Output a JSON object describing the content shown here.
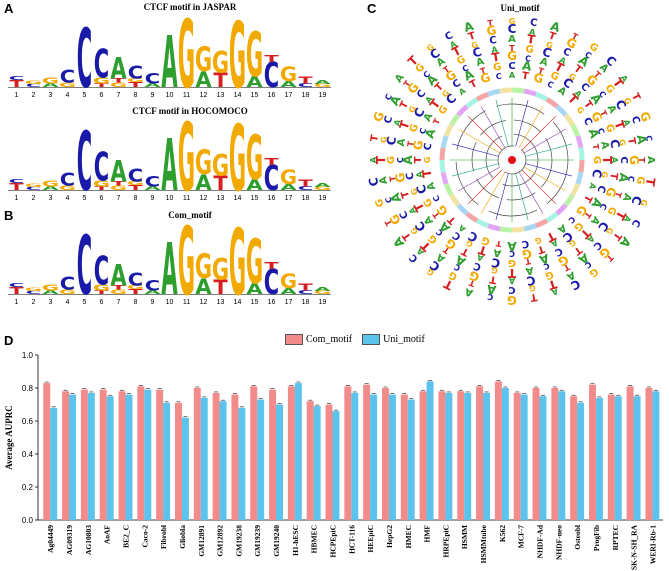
{
  "panels": {
    "a": {
      "letter": "A",
      "title": "CTCF motif in JASPAR"
    },
    "a2": {
      "title": "CTCF motif in HOCOMOCO"
    },
    "b": {
      "letter": "B",
      "title": "Com_motif"
    },
    "c": {
      "letter": "C",
      "title": "Uni_motif"
    },
    "d": {
      "letter": "D"
    }
  },
  "logo": {
    "positions": [
      "1",
      "2",
      "3",
      "4",
      "5",
      "6",
      "7",
      "8",
      "9",
      "10",
      "11",
      "12",
      "13",
      "14",
      "15",
      "16",
      "17",
      "18",
      "19"
    ],
    "colors": {
      "A": "#2e9e2e",
      "C": "#1a1aa8",
      "G": "#f2a900",
      "T": "#d42020"
    },
    "columns": [
      [
        {
          "b": "T",
          "h": 0.1
        },
        {
          "b": "C",
          "h": 0.05
        }
      ],
      [
        {
          "b": "C",
          "h": 0.04
        },
        {
          "b": "G",
          "h": 0.04
        }
      ],
      [
        {
          "b": "A",
          "h": 0.05
        },
        {
          "b": "G",
          "h": 0.08
        }
      ],
      [
        {
          "b": "G",
          "h": 0.06
        },
        {
          "b": "C",
          "h": 0.18
        }
      ],
      [
        {
          "b": "C",
          "h": 0.82
        }
      ],
      [
        {
          "b": "T",
          "h": 0.05
        },
        {
          "b": "G",
          "h": 0.08
        },
        {
          "b": "C",
          "h": 0.4
        }
      ],
      [
        {
          "b": "G",
          "h": 0.06
        },
        {
          "b": "T",
          "h": 0.06
        },
        {
          "b": "A",
          "h": 0.3
        }
      ],
      [
        {
          "b": "T",
          "h": 0.07
        },
        {
          "b": "G",
          "h": 0.05
        },
        {
          "b": "C",
          "h": 0.18
        }
      ],
      [
        {
          "b": "A",
          "h": 0.05
        },
        {
          "b": "C",
          "h": 0.14
        }
      ],
      [
        {
          "b": "A",
          "h": 0.72
        }
      ],
      [
        {
          "b": "G",
          "h": 0.95
        }
      ],
      [
        {
          "b": "A",
          "h": 0.22
        },
        {
          "b": "G",
          "h": 0.34
        }
      ],
      [
        {
          "b": "T",
          "h": 0.2
        },
        {
          "b": "G",
          "h": 0.3
        }
      ],
      [
        {
          "b": "G",
          "h": 0.92
        }
      ],
      [
        {
          "b": "A",
          "h": 0.15
        },
        {
          "b": "G",
          "h": 0.62
        }
      ],
      [
        {
          "b": "C",
          "h": 0.35
        },
        {
          "b": "T",
          "h": 0.1
        }
      ],
      [
        {
          "b": "A",
          "h": 0.08
        },
        {
          "b": "G",
          "h": 0.2
        }
      ],
      [
        {
          "b": "C",
          "h": 0.05
        },
        {
          "b": "T",
          "h": 0.1
        }
      ],
      [
        {
          "b": "G",
          "h": 0.04
        },
        {
          "b": "A",
          "h": 0.05
        }
      ]
    ]
  },
  "circle": {
    "label_colors": [
      "#2e9e2e",
      "#1a1aa8",
      "#f2a900",
      "#d42020",
      "#8e44ad",
      "#16a085"
    ],
    "ring_colors": [
      "#f4a6a6",
      "#a6d8f4",
      "#f4e3a6",
      "#b9f4a6",
      "#e3a6f4",
      "#a6f4e3"
    ]
  },
  "legend": {
    "com": "Com_motif",
    "uni": "Uni_motif",
    "com_color": "#f48b8b",
    "uni_color": "#5bc3ec"
  },
  "chart_data": {
    "type": "bar",
    "ylabel": "Average AUPRC",
    "ylim": [
      0,
      1.0
    ],
    "yticks": [
      "0.0",
      "0.2",
      "0.4",
      "0.6",
      "0.8",
      "1.0"
    ],
    "categories": [
      "Ag04449",
      "AG09319",
      "AG10803",
      "AoAF",
      "BE2_C",
      "Caco-2",
      "Fibrobl",
      "Gliobla",
      "GM12891",
      "GM12892",
      "GM19238",
      "GM19239",
      "GM19240",
      "H1-hESC",
      "HBMEC",
      "HCPEpiC",
      "HCT-116",
      "HEEpiC",
      "HepG2",
      "HMEC",
      "HMF",
      "HRPEpiC",
      "HSMM",
      "HSMMtube",
      "K562",
      "MCF-7",
      "NHDF-Ad",
      "NHDF-neo",
      "Osteobl",
      "ProgFib",
      "RPTEC",
      "SK-N-SH_RA",
      "WERI-Rb-1"
    ],
    "series": [
      {
        "name": "Com_motif",
        "color": "#f48b8b",
        "values": [
          0.83,
          0.78,
          0.79,
          0.79,
          0.78,
          0.81,
          0.79,
          0.71,
          0.8,
          0.77,
          0.76,
          0.81,
          0.79,
          0.81,
          0.72,
          0.7,
          0.81,
          0.82,
          0.8,
          0.76,
          0.78,
          0.78,
          0.78,
          0.81,
          0.84,
          0.77,
          0.8,
          0.8,
          0.75,
          0.82,
          0.76,
          0.81,
          0.8
        ]
      },
      {
        "name": "Uni_motif",
        "color": "#5bc3ec",
        "values": [
          0.68,
          0.76,
          0.77,
          0.75,
          0.76,
          0.79,
          0.71,
          0.62,
          0.74,
          0.72,
          0.68,
          0.73,
          0.7,
          0.83,
          0.69,
          0.66,
          0.77,
          0.76,
          0.76,
          0.73,
          0.84,
          0.77,
          0.77,
          0.77,
          0.8,
          0.76,
          0.75,
          0.78,
          0.71,
          0.74,
          0.75,
          0.75,
          0.78
        ]
      }
    ]
  }
}
